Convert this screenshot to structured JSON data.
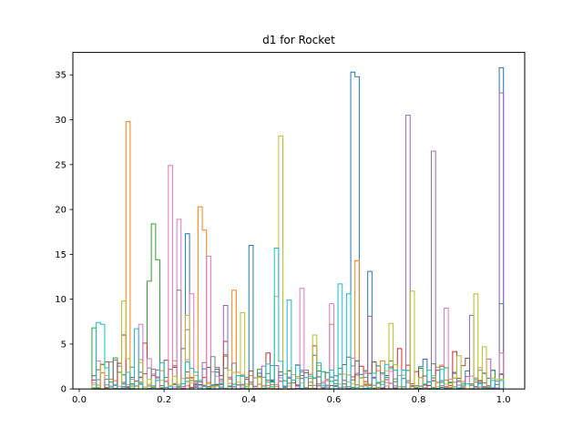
{
  "chart_data": {
    "type": "histogram-step",
    "title": "d1 for Rocket",
    "xlabel": "",
    "ylabel": "",
    "xlim": [
      -0.015,
      1.05
    ],
    "ylim": [
      0,
      37.5
    ],
    "xticks": [
      0.0,
      0.2,
      0.4,
      0.6,
      0.8,
      1.0
    ],
    "xtick_labels": [
      "0.0",
      "0.2",
      "0.4",
      "0.6",
      "0.8",
      "1.0"
    ],
    "yticks": [
      0,
      5,
      10,
      15,
      20,
      25,
      30,
      35
    ],
    "ytick_labels": [
      "0",
      "5",
      "10",
      "15",
      "20",
      "25",
      "30",
      "35"
    ],
    "grid": false,
    "legend": "none",
    "bin_width": 0.01,
    "series": [
      {
        "color": "#1f77b4",
        "peaks": [
          [
            0.24,
            4.5
          ],
          [
            0.25,
            17.3
          ],
          [
            0.4,
            16.0
          ],
          [
            0.64,
            15.6
          ],
          [
            0.645,
            35.3
          ],
          [
            0.65,
            34.8
          ],
          [
            0.69,
            13.1
          ],
          [
            0.995,
            35.8
          ],
          [
            0.99,
            12.8
          ]
        ]
      },
      {
        "color": "#ff7f0e",
        "peaks": [
          [
            0.11,
            29.8
          ],
          [
            0.28,
            20.3
          ],
          [
            0.29,
            17.7
          ],
          [
            0.365,
            11.0
          ],
          [
            0.65,
            14.3
          ],
          [
            0.6,
            7.2
          ]
        ]
      },
      {
        "color": "#2ca02c",
        "peaks": [
          [
            0.035,
            6.8
          ],
          [
            0.165,
            12.0
          ],
          [
            0.175,
            18.4
          ],
          [
            0.185,
            14.4
          ],
          [
            0.23,
            11.0
          ],
          [
            0.99,
            9.5
          ]
        ]
      },
      {
        "color": "#d62728",
        "peaks": [
          [
            0.1,
            6.0
          ],
          [
            0.15,
            5.1
          ],
          [
            0.34,
            5.3
          ],
          [
            0.44,
            4.0
          ],
          [
            0.55,
            4.8
          ],
          [
            0.75,
            4.5
          ]
        ]
      },
      {
        "color": "#9467bd",
        "peaks": [
          [
            0.25,
            6.6
          ],
          [
            0.35,
            9.3
          ],
          [
            0.68,
            8.1
          ],
          [
            0.77,
            30.5
          ],
          [
            0.84,
            26.5
          ],
          [
            0.995,
            33.0
          ],
          [
            0.92,
            8.2
          ]
        ]
      },
      {
        "color": "#8c564b",
        "peaks": [
          [
            0.05,
            2.7
          ],
          [
            0.2,
            3.2
          ],
          [
            0.3,
            2.4
          ],
          [
            0.5,
            2.0
          ],
          [
            0.7,
            3.0
          ],
          [
            0.9,
            2.6
          ]
        ]
      },
      {
        "color": "#e377c2",
        "peaks": [
          [
            0.14,
            7.2
          ],
          [
            0.215,
            24.9
          ],
          [
            0.235,
            18.9
          ],
          [
            0.265,
            10.6
          ],
          [
            0.3,
            14.8
          ],
          [
            0.52,
            11.2
          ],
          [
            0.6,
            9.5
          ],
          [
            0.86,
            9.0
          ],
          [
            0.995,
            4.0
          ]
        ]
      },
      {
        "color": "#7f7f7f",
        "peaks": [
          [
            0.07,
            3.0
          ],
          [
            0.17,
            2.2
          ],
          [
            0.31,
            3.6
          ],
          [
            0.45,
            2.6
          ],
          [
            0.65,
            3.1
          ],
          [
            0.85,
            2.5
          ]
        ]
      },
      {
        "color": "#bcbf22",
        "peaks": [
          [
            0.1,
            9.8
          ],
          [
            0.25,
            8.2
          ],
          [
            0.38,
            8.5
          ],
          [
            0.46,
            10.3
          ],
          [
            0.475,
            28.2
          ],
          [
            0.55,
            6.0
          ],
          [
            0.73,
            7.3
          ],
          [
            0.78,
            10.9
          ],
          [
            0.93,
            10.6
          ],
          [
            0.96,
            4.7
          ]
        ]
      },
      {
        "color": "#17becf",
        "peaks": [
          [
            0.04,
            7.4
          ],
          [
            0.05,
            7.2
          ],
          [
            0.13,
            6.7
          ],
          [
            0.46,
            15.7
          ],
          [
            0.47,
            14.3
          ],
          [
            0.5,
            9.9
          ],
          [
            0.62,
            11.7
          ],
          [
            0.63,
            10.6
          ]
        ]
      }
    ]
  }
}
